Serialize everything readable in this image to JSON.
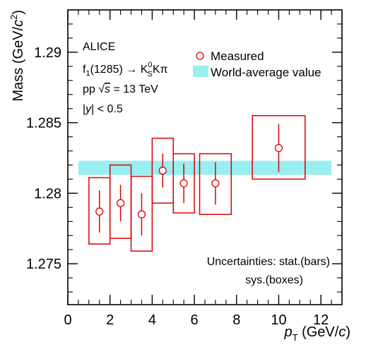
{
  "chart_data": {
    "type": "scatter",
    "title": "",
    "xlabel": {
      "symbol": "p",
      "sub": "T",
      "unit_pre": " (GeV/",
      "unit_var": "c",
      "unit_post": ")"
    },
    "ylabel": {
      "text": "Mass (GeV/",
      "var": "c",
      "sup": "2",
      "close": ")"
    },
    "xlim": [
      0,
      13
    ],
    "ylim": [
      1.2721,
      1.293
    ],
    "xticks": [
      0,
      2,
      4,
      6,
      8,
      10,
      12
    ],
    "xtick_labels": [
      "0",
      "2",
      "4",
      "6",
      "8",
      "10",
      "12"
    ],
    "yticks": [
      1.275,
      1.28,
      1.285,
      1.29
    ],
    "ytick_labels": [
      "1.275",
      "1.28",
      "1.285",
      "1.29"
    ],
    "grid": false,
    "legend_position": "top-right",
    "series": [
      {
        "name": "Measured",
        "color": "#dd0000",
        "x": [
          1.5,
          2.5,
          3.5,
          4.5,
          5.5,
          7.0,
          10.0
        ],
        "y": [
          1.2787,
          1.2793,
          1.2785,
          1.2816,
          1.2807,
          1.2807,
          1.2832
        ],
        "stat_err": [
          0.0015,
          0.0013,
          0.0015,
          0.0012,
          0.0014,
          0.0015,
          0.0017
        ],
        "sys_low": [
          1.2764,
          1.2768,
          1.2759,
          1.2793,
          1.2786,
          1.2785,
          1.281
        ],
        "sys_high": [
          1.2811,
          1.282,
          1.2812,
          1.2839,
          1.2828,
          1.2828,
          1.2855
        ],
        "box_halfwidth": [
          0.5,
          0.5,
          0.5,
          0.5,
          0.5,
          0.75,
          1.25
        ]
      }
    ],
    "world_average": {
      "name": "World-average value",
      "color": "#99eef0",
      "x_range": [
        0.5,
        12.5
      ],
      "y_low": 1.2813,
      "y_high": 1.2823
    },
    "annotations": {
      "experiment": "ALICE",
      "decay": {
        "f": "f",
        "f_sub": "1",
        "mass": "(1285)",
        "arrow": " → ",
        "k": "K",
        "k_sup": "0",
        "k_sub": "S",
        "rest": "Kπ"
      },
      "system": {
        "pre": "pp ",
        "sqrt": "√",
        "s": "s",
        "post": " = 13 TeV"
      },
      "rapidity": {
        "bar1": "|",
        "y": "y",
        "bar2": "|",
        "post": " < 0.5"
      },
      "uncertainties_line1": "Uncertainties: stat.(bars)",
      "uncertainties_line2": "sys.(boxes)"
    }
  }
}
